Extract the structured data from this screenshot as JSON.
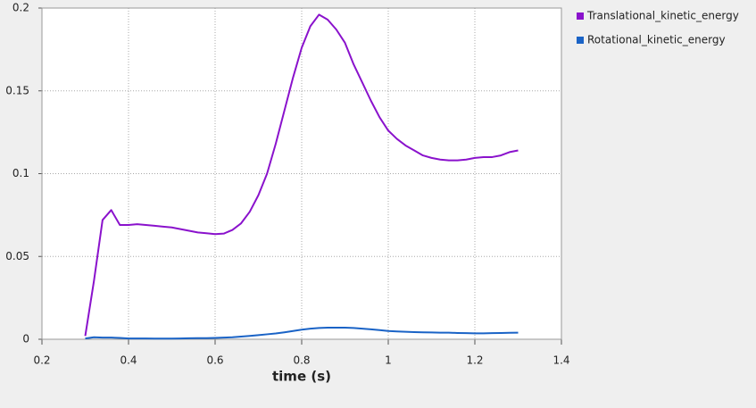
{
  "chart_data": {
    "type": "line",
    "xlabel": "time (s)",
    "x": [
      0.3,
      0.32,
      0.34,
      0.36,
      0.38,
      0.4,
      0.42,
      0.44,
      0.46,
      0.48,
      0.5,
      0.52,
      0.54,
      0.56,
      0.58,
      0.6,
      0.62,
      0.64,
      0.66,
      0.68,
      0.7,
      0.72,
      0.74,
      0.76,
      0.78,
      0.8,
      0.82,
      0.84,
      0.86,
      0.88,
      0.9,
      0.92,
      0.94,
      0.96,
      0.98,
      1.0,
      1.02,
      1.04,
      1.06,
      1.08,
      1.1,
      1.12,
      1.14,
      1.16,
      1.18,
      1.2,
      1.22,
      1.24,
      1.26,
      1.28,
      1.3
    ],
    "series": [
      {
        "name": "Translational_kinetic_energy",
        "color": "#8a12cc",
        "values": [
          0.002,
          0.035,
          0.072,
          0.078,
          0.069,
          0.069,
          0.0695,
          0.069,
          0.0685,
          0.068,
          0.0675,
          0.0665,
          0.0655,
          0.0645,
          0.064,
          0.0635,
          0.0638,
          0.066,
          0.07,
          0.077,
          0.087,
          0.1,
          0.118,
          0.138,
          0.158,
          0.176,
          0.189,
          0.196,
          0.193,
          0.187,
          0.179,
          0.166,
          0.155,
          0.144,
          0.134,
          0.126,
          0.121,
          0.117,
          0.114,
          0.111,
          0.1095,
          0.1085,
          0.108,
          0.108,
          0.1085,
          0.1095,
          0.11,
          0.11,
          0.111,
          0.113,
          0.114
        ]
      },
      {
        "name": "Rotational_kinetic_energy",
        "color": "#1a63c6",
        "values": [
          0.0005,
          0.0012,
          0.001,
          0.001,
          0.0008,
          0.0005,
          0.0005,
          0.0005,
          0.0004,
          0.0004,
          0.0004,
          0.0005,
          0.0006,
          0.0007,
          0.0007,
          0.0008,
          0.001,
          0.0012,
          0.0016,
          0.002,
          0.0025,
          0.003,
          0.0035,
          0.0042,
          0.005,
          0.0058,
          0.0064,
          0.0068,
          0.007,
          0.007,
          0.007,
          0.0068,
          0.0064,
          0.006,
          0.0055,
          0.005,
          0.0047,
          0.0045,
          0.0043,
          0.0042,
          0.0041,
          0.004,
          0.004,
          0.0038,
          0.0037,
          0.0036,
          0.0036,
          0.0037,
          0.0038,
          0.0039,
          0.004
        ]
      }
    ],
    "xlim": [
      0.2,
      1.4
    ],
    "xticks": [
      0.2,
      0.4,
      0.6,
      0.8,
      1,
      1.2,
      1.4
    ],
    "ylim": [
      0,
      0.2
    ],
    "yticks": [
      0,
      0.05,
      0.1,
      0.15,
      0.2
    ],
    "grid": true,
    "legend": "right"
  }
}
